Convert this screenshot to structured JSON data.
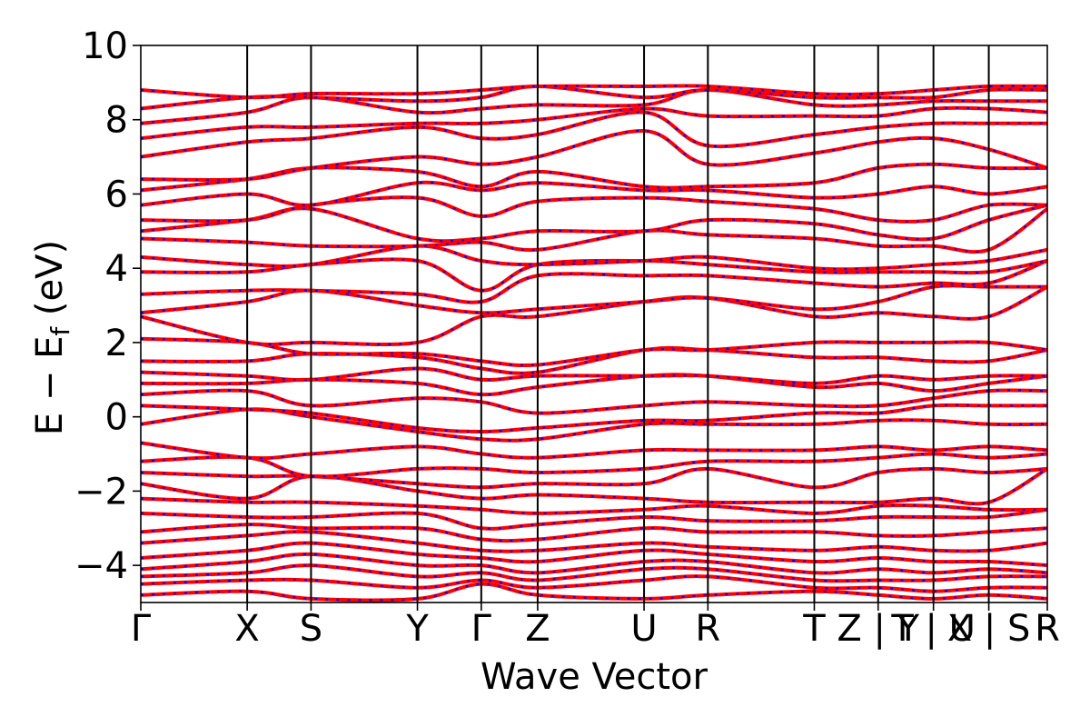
{
  "chart_data": {
    "type": "line",
    "title": "",
    "xlabel": "Wave Vector",
    "ylabel": "E − E_f (eV)",
    "ylabel_main": "E − E",
    "ylabel_sub": "f",
    "ylabel_unit": " (eV)",
    "ylim": [
      -5,
      10
    ],
    "yticks": [
      -4,
      -2,
      0,
      2,
      4,
      6,
      8,
      10
    ],
    "ytick_labels": [
      "−4",
      "−2",
      "0",
      "2",
      "4",
      "6",
      "8",
      "10"
    ],
    "xlim": [
      0,
      8.52
    ],
    "high_symmetry_points": [
      {
        "label": "Γ",
        "x": 0.0
      },
      {
        "label": "X",
        "x": 1.0
      },
      {
        "label": "S",
        "x": 1.6
      },
      {
        "label": "Y",
        "x": 2.6
      },
      {
        "label": "Γ",
        "x": 3.2
      },
      {
        "label": "Z",
        "x": 3.73
      },
      {
        "label": "U",
        "x": 4.73
      },
      {
        "label": "R",
        "x": 5.33
      },
      {
        "label": "T",
        "x": 6.33
      },
      {
        "label": "Z | Y",
        "x": 6.93
      },
      {
        "label": "T | U",
        "x": 7.45
      },
      {
        "label": "X | S",
        "x": 7.97
      },
      {
        "label": "R",
        "x": 8.52
      }
    ],
    "series_colors": {
      "primary": "#ff0000",
      "overlay": "#0000ff"
    },
    "band_energies_at_points": [
      [
        -4.8,
        -4.7,
        -4.9,
        -4.9,
        -4.5,
        -4.8,
        -4.9,
        -4.8,
        -4.7,
        -4.8,
        -4.9,
        -4.8,
        -4.9
      ],
      [
        -4.5,
        -4.4,
        -4.4,
        -4.6,
        -4.4,
        -4.6,
        -4.4,
        -4.3,
        -4.6,
        -4.6,
        -4.7,
        -4.6,
        -4.6
      ],
      [
        -4.3,
        -4.2,
        -4.0,
        -4.3,
        -4.2,
        -4.4,
        -4.1,
        -4.1,
        -4.4,
        -4.4,
        -4.4,
        -4.3,
        -4.3
      ],
      [
        -4.1,
        -3.9,
        -3.7,
        -4.0,
        -4.0,
        -4.2,
        -3.9,
        -3.9,
        -4.2,
        -4.1,
        -4.2,
        -4.1,
        -4.2
      ],
      [
        -3.8,
        -3.6,
        -3.4,
        -3.7,
        -3.8,
        -3.9,
        -3.6,
        -3.7,
        -3.9,
        -3.8,
        -3.9,
        -3.9,
        -4.0
      ],
      [
        -3.4,
        -3.2,
        -3.1,
        -3.4,
        -3.6,
        -3.6,
        -3.4,
        -3.5,
        -3.6,
        -3.5,
        -3.6,
        -3.6,
        -3.4
      ],
      [
        -3.1,
        -2.9,
        -3.0,
        -3.0,
        -3.3,
        -3.3,
        -3.0,
        -3.1,
        -3.1,
        -3.2,
        -3.2,
        -3.1,
        -3.0
      ],
      [
        -2.6,
        -2.7,
        -2.7,
        -2.6,
        -3.0,
        -2.9,
        -2.7,
        -2.8,
        -2.8,
        -2.7,
        -2.7,
        -2.7,
        -2.5
      ],
      [
        -2.2,
        -2.3,
        -2.3,
        -2.4,
        -2.5,
        -2.6,
        -2.5,
        -2.4,
        -2.6,
        -2.4,
        -2.4,
        -2.5,
        -2.5
      ],
      [
        -1.8,
        -2.2,
        -1.6,
        -2.0,
        -2.2,
        -2.1,
        -2.2,
        -2.3,
        -2.3,
        -2.3,
        -2.2,
        -2.3,
        -1.4
      ],
      [
        -1.5,
        -1.6,
        -1.6,
        -1.8,
        -1.9,
        -1.8,
        -1.8,
        -1.4,
        -1.9,
        -1.5,
        -1.4,
        -1.5,
        -1.4
      ],
      [
        -1.2,
        -1.1,
        -1.6,
        -1.4,
        -1.4,
        -1.5,
        -1.4,
        -1.2,
        -1.2,
        -1.1,
        -1.0,
        -1.1,
        -1.0
      ],
      [
        -0.7,
        -1.1,
        -1.0,
        -0.8,
        -1.0,
        -1.1,
        -0.9,
        -0.9,
        -0.9,
        -0.8,
        -0.9,
        -0.8,
        -0.9
      ],
      [
        -0.2,
        0.2,
        0.0,
        -0.4,
        -0.6,
        -0.6,
        -0.2,
        -0.2,
        -0.2,
        -0.1,
        -0.1,
        -0.2,
        -0.2
      ],
      [
        0.3,
        0.2,
        0.1,
        -0.3,
        -0.4,
        -0.3,
        -0.1,
        -0.1,
        0.1,
        0.1,
        0.3,
        0.3,
        0.3
      ],
      [
        0.6,
        0.7,
        0.3,
        0.5,
        0.4,
        0.1,
        0.3,
        0.4,
        0.3,
        0.3,
        0.5,
        0.7,
        0.7
      ],
      [
        0.9,
        0.9,
        1.0,
        0.9,
        0.6,
        0.8,
        1.1,
        1.1,
        0.8,
        0.9,
        0.7,
        0.9,
        1.1
      ],
      [
        1.2,
        1.1,
        1.0,
        1.3,
        1.0,
        1.1,
        1.1,
        1.1,
        0.9,
        1.1,
        1.0,
        1.1,
        1.1
      ],
      [
        1.5,
        1.5,
        1.7,
        1.6,
        1.3,
        1.2,
        1.8,
        1.8,
        1.6,
        1.6,
        1.5,
        1.5,
        1.8
      ],
      [
        2.1,
        2.0,
        1.7,
        1.7,
        1.5,
        1.4,
        1.8,
        1.8,
        2.0,
        2.0,
        2.0,
        2.0,
        1.8
      ],
      [
        2.7,
        2.0,
        2.0,
        2.0,
        2.7,
        2.7,
        3.1,
        3.2,
        2.7,
        2.8,
        2.7,
        2.7,
        3.5
      ],
      [
        2.8,
        3.1,
        3.4,
        3.0,
        2.8,
        2.9,
        3.1,
        3.2,
        2.9,
        3.1,
        3.5,
        3.5,
        3.5
      ],
      [
        3.3,
        3.4,
        3.4,
        3.3,
        3.1,
        3.8,
        3.8,
        3.8,
        3.6,
        3.5,
        3.6,
        3.6,
        4.2
      ],
      [
        3.9,
        3.9,
        4.1,
        4.2,
        3.4,
        4.1,
        4.2,
        4.1,
        3.9,
        3.9,
        3.9,
        3.9,
        4.2
      ],
      [
        4.3,
        4.1,
        4.1,
        4.6,
        4.2,
        4.1,
        4.2,
        4.3,
        4.0,
        4.0,
        4.1,
        4.2,
        4.5
      ],
      [
        4.8,
        4.7,
        4.6,
        4.6,
        4.7,
        4.5,
        5.0,
        4.9,
        4.8,
        4.6,
        4.6,
        4.5,
        5.6
      ],
      [
        5.0,
        5.3,
        5.6,
        4.8,
        4.8,
        5.0,
        5.0,
        5.3,
        5.2,
        4.9,
        4.8,
        5.3,
        5.7
      ],
      [
        5.3,
        5.3,
        5.7,
        5.9,
        5.4,
        5.8,
        5.9,
        5.8,
        5.6,
        5.3,
        5.3,
        5.7,
        5.7
      ],
      [
        5.7,
        6.0,
        5.7,
        6.3,
        6.1,
        6.3,
        6.1,
        6.1,
        5.9,
        6.0,
        6.2,
        6.0,
        6.2
      ],
      [
        6.1,
        6.4,
        6.7,
        6.6,
        6.2,
        6.6,
        6.2,
        6.2,
        6.3,
        6.7,
        6.8,
        6.7,
        6.7
      ],
      [
        6.4,
        6.4,
        6.7,
        7.0,
        6.8,
        7.0,
        7.7,
        6.8,
        7.1,
        7.4,
        7.5,
        7.2,
        6.7
      ],
      [
        7.0,
        7.4,
        7.5,
        7.8,
        7.5,
        7.6,
        8.2,
        7.3,
        7.6,
        7.8,
        7.9,
        7.9,
        7.9
      ],
      [
        7.5,
        7.8,
        7.8,
        7.9,
        7.9,
        8.0,
        8.3,
        8.1,
        8.1,
        8.1,
        8.3,
        8.3,
        8.2
      ],
      [
        7.9,
        8.2,
        8.6,
        8.2,
        8.3,
        8.4,
        8.4,
        8.8,
        8.4,
        8.4,
        8.5,
        8.5,
        8.5
      ],
      [
        8.3,
        8.6,
        8.6,
        8.5,
        8.6,
        8.9,
        8.6,
        8.8,
        8.6,
        8.6,
        8.6,
        8.8,
        8.8
      ],
      [
        8.8,
        8.6,
        8.7,
        8.7,
        8.8,
        8.9,
        8.9,
        8.9,
        8.7,
        8.7,
        8.8,
        8.9,
        8.9
      ]
    ]
  }
}
